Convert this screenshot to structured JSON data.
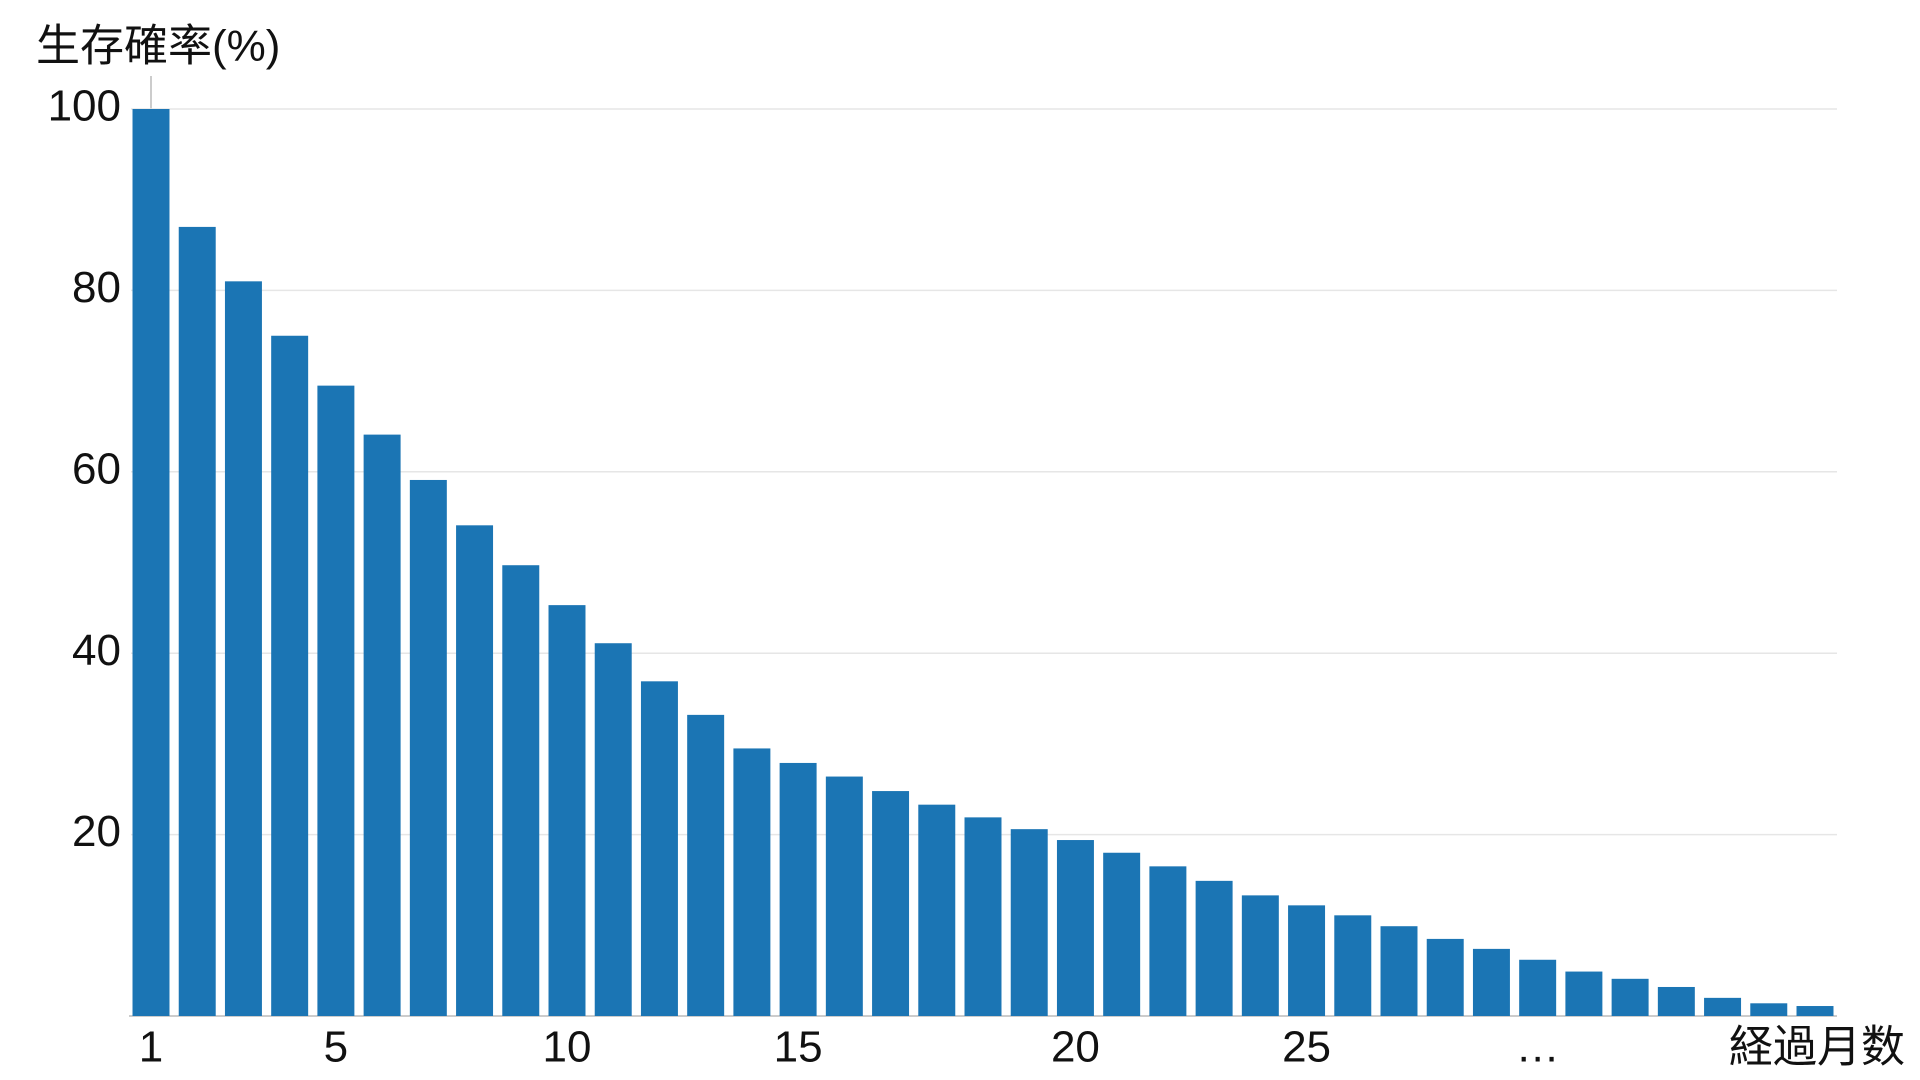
{
  "chart_data": {
    "type": "bar",
    "y_label": "生存確率(%)",
    "x_label": "経過月数",
    "categories": [
      "1",
      null,
      null,
      null,
      "5",
      null,
      null,
      null,
      null,
      "10",
      null,
      null,
      null,
      null,
      "15",
      null,
      null,
      null,
      null,
      null,
      "20",
      null,
      null,
      null,
      null,
      "25",
      null,
      null,
      null,
      null,
      "…",
      null,
      null,
      null,
      null,
      null,
      null
    ],
    "values": [
      100,
      87,
      81,
      75,
      69.5,
      64.1,
      59.1,
      54.1,
      49.7,
      45.3,
      41.1,
      36.9,
      33.2,
      29.5,
      27.9,
      26.4,
      24.8,
      23.3,
      21.9,
      20.6,
      19.4,
      18.0,
      16.5,
      14.9,
      13.3,
      12.2,
      11.1,
      9.9,
      8.5,
      7.4,
      6.2,
      4.9,
      4.1,
      3.2,
      2.0,
      1.4,
      1.1
    ],
    "color": "#1b75b4",
    "ylim": [
      0,
      100
    ],
    "yticks": [
      20,
      40,
      60,
      80,
      100
    ],
    "grid": true
  }
}
